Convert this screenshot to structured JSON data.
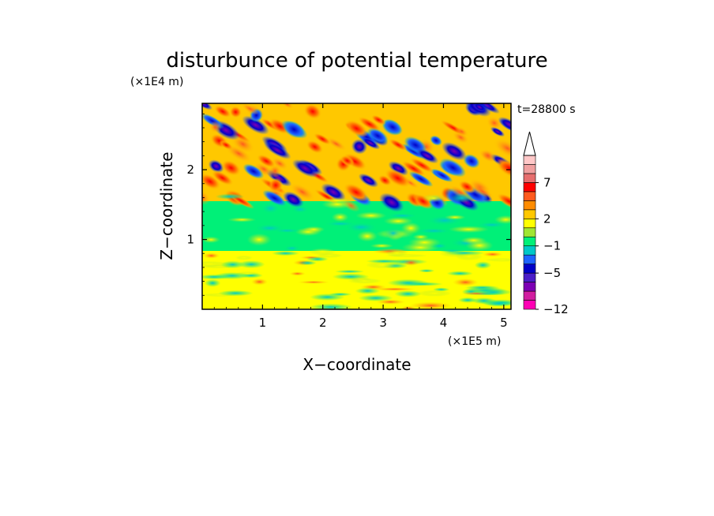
{
  "chart_data": {
    "type": "heatmap",
    "title": "disturbunce of potential temperature",
    "time_label": "t=28800 s",
    "xlabel": "X−coordinate",
    "ylabel": "Z−coordinate",
    "x_unit": "(×1E5 m)",
    "y_unit": "(×1E4 m)",
    "xlim": [
      0,
      5.12
    ],
    "ylim": [
      0,
      2.95
    ],
    "x_ticks": [
      1,
      2,
      3,
      4,
      5
    ],
    "y_ticks": [
      1,
      2
    ],
    "x_tick_labels": [
      "1",
      "2",
      "3",
      "4",
      "5"
    ],
    "y_tick_labels": [
      "1",
      "2"
    ],
    "colorbar": {
      "levels": [
        -12,
        -5,
        -1,
        2,
        7
      ],
      "tick_labels": [
        "−12",
        "−5",
        "−1",
        "2",
        "7"
      ],
      "colors": [
        "#ff00b4",
        "#d21ea0",
        "#7d00b4",
        "#4b1ec8",
        "#0000c8",
        "#1e64ff",
        "#00c8c8",
        "#00f078",
        "#a0e632",
        "#ffff00",
        "#ffc800",
        "#ff8c00",
        "#ff5a1e",
        "#ff0000",
        "#e66e6e",
        "#f0a0a0",
        "#ffc8c8"
      ],
      "extend": "max"
    },
    "field_description_bands": [
      {
        "z_range": [
          0,
          0.9
        ],
        "typical_value": 2
      },
      {
        "z_range": [
          0.9,
          1.5
        ],
        "typical_value": 0
      },
      {
        "z_range": [
          1.5,
          2.95
        ],
        "typical_value": "oscillating -8 to 8"
      }
    ]
  }
}
